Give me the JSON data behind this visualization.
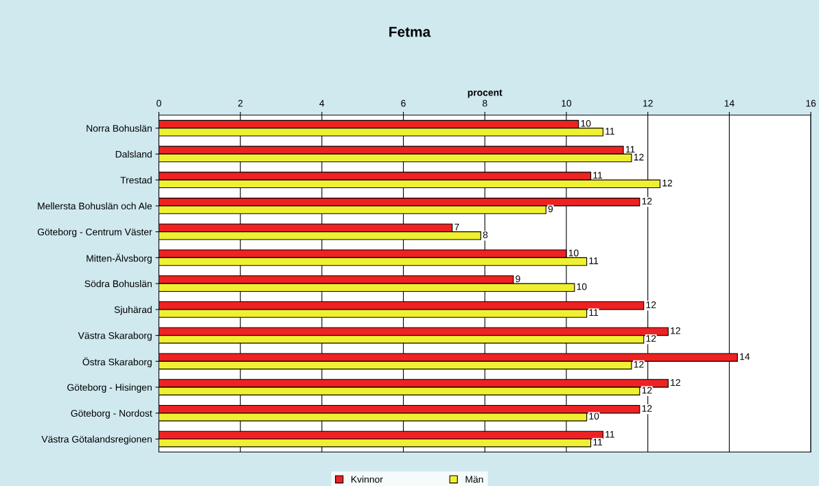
{
  "chart_data": {
    "type": "bar",
    "orientation": "horizontal",
    "title": "Fetma",
    "xlabel": "procent",
    "categories": [
      "Norra Bohuslän",
      "Dalsland",
      "Trestad",
      "Mellersta Bohuslän och Ale",
      "Göteborg - Centrum Väster",
      "Mitten-Älvsborg",
      "Södra Bohuslän",
      "Sjuhärad",
      "Västra Skaraborg",
      "Östra Skaraborg",
      "Göteborg - Hisingen",
      "Göteborg - Nordost",
      "Västra Götalandsregionen"
    ],
    "series": [
      {
        "name": "Kvinnor",
        "color": "#ee2222",
        "values": [
          10.3,
          11.4,
          10.6,
          11.8,
          7.2,
          10.0,
          8.7,
          11.9,
          12.5,
          14.2,
          12.5,
          11.8,
          10.9
        ],
        "value_labels": [
          "10",
          "11",
          "11",
          "12",
          "7",
          "10",
          "9",
          "12",
          "12",
          "14",
          "12",
          "12",
          "11"
        ]
      },
      {
        "name": "Män",
        "color": "#f0f032",
        "values": [
          10.9,
          11.6,
          12.3,
          9.5,
          7.9,
          10.5,
          10.2,
          10.5,
          11.9,
          11.6,
          11.8,
          10.5,
          10.6
        ],
        "value_labels": [
          "11",
          "12",
          "12",
          "9",
          "8",
          "11",
          "10",
          "11",
          "12",
          "12",
          "12",
          "10",
          "11"
        ]
      }
    ],
    "xlim": [
      0,
      16
    ],
    "xticks": [
      0,
      2,
      4,
      6,
      8,
      10,
      12,
      14,
      16
    ],
    "grid": "x",
    "legend": "bottom"
  }
}
